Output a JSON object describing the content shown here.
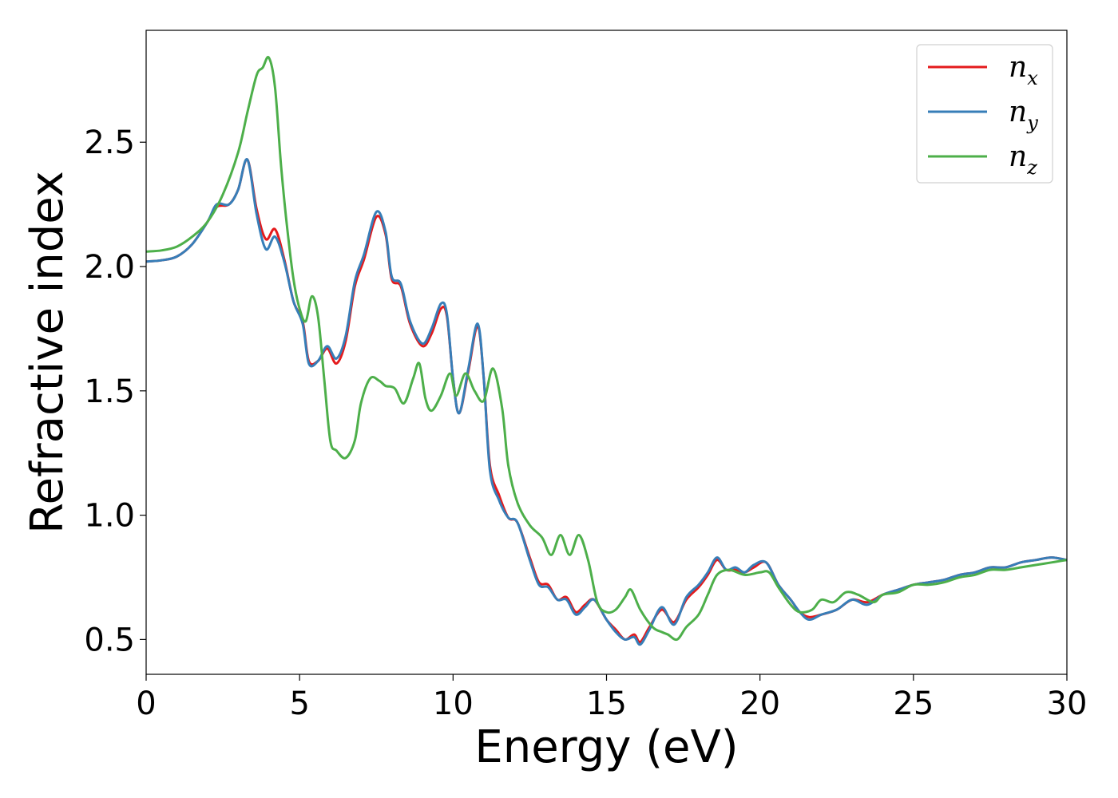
{
  "chart_data": {
    "type": "line",
    "xlabel": "Energy (eV)",
    "ylabel": "Refractive index",
    "xlim": [
      0,
      30
    ],
    "ylim": [
      0.36,
      2.95
    ],
    "x_ticks": [
      "0",
      "5",
      "10",
      "15",
      "20",
      "25",
      "30"
    ],
    "y_ticks": [
      "0.5",
      "1.0",
      "1.5",
      "2.0",
      "2.5"
    ],
    "grid": false,
    "legend_position": "top-right",
    "series": [
      {
        "name": "n_x",
        "legend_base": "n",
        "legend_sub": "x",
        "color": "#e41a1c",
        "points": [
          [
            0,
            2.02
          ],
          [
            0.5,
            2.025
          ],
          [
            1.0,
            2.04
          ],
          [
            1.5,
            2.09
          ],
          [
            2.0,
            2.18
          ],
          [
            2.3,
            2.24
          ],
          [
            2.7,
            2.25
          ],
          [
            3.0,
            2.31
          ],
          [
            3.3,
            2.43
          ],
          [
            3.6,
            2.23
          ],
          [
            3.9,
            2.11
          ],
          [
            4.2,
            2.15
          ],
          [
            4.5,
            2.03
          ],
          [
            4.8,
            1.86
          ],
          [
            5.1,
            1.78
          ],
          [
            5.3,
            1.62
          ],
          [
            5.6,
            1.62
          ],
          [
            5.9,
            1.67
          ],
          [
            6.2,
            1.61
          ],
          [
            6.5,
            1.7
          ],
          [
            6.8,
            1.92
          ],
          [
            7.1,
            2.03
          ],
          [
            7.5,
            2.2
          ],
          [
            7.8,
            2.13
          ],
          [
            8.0,
            1.95
          ],
          [
            8.3,
            1.92
          ],
          [
            8.6,
            1.77
          ],
          [
            9.0,
            1.68
          ],
          [
            9.3,
            1.73
          ],
          [
            9.6,
            1.83
          ],
          [
            9.8,
            1.8
          ],
          [
            10.0,
            1.55
          ],
          [
            10.2,
            1.41
          ],
          [
            10.5,
            1.58
          ],
          [
            10.8,
            1.76
          ],
          [
            11.0,
            1.55
          ],
          [
            11.2,
            1.2
          ],
          [
            11.5,
            1.08
          ],
          [
            11.8,
            0.99
          ],
          [
            12.1,
            0.97
          ],
          [
            12.5,
            0.83
          ],
          [
            12.8,
            0.73
          ],
          [
            13.1,
            0.72
          ],
          [
            13.4,
            0.66
          ],
          [
            13.7,
            0.67
          ],
          [
            14.0,
            0.61
          ],
          [
            14.3,
            0.64
          ],
          [
            14.6,
            0.66
          ],
          [
            15.0,
            0.58
          ],
          [
            15.3,
            0.54
          ],
          [
            15.6,
            0.5
          ],
          [
            15.9,
            0.52
          ],
          [
            16.1,
            0.49
          ],
          [
            16.4,
            0.55
          ],
          [
            16.8,
            0.62
          ],
          [
            17.2,
            0.57
          ],
          [
            17.6,
            0.66
          ],
          [
            18.0,
            0.71
          ],
          [
            18.3,
            0.76
          ],
          [
            18.6,
            0.82
          ],
          [
            18.9,
            0.78
          ],
          [
            19.2,
            0.78
          ],
          [
            19.5,
            0.77
          ],
          [
            19.8,
            0.79
          ],
          [
            20.2,
            0.81
          ],
          [
            20.6,
            0.72
          ],
          [
            21.0,
            0.66
          ],
          [
            21.3,
            0.61
          ],
          [
            21.6,
            0.59
          ],
          [
            22.0,
            0.6
          ],
          [
            22.5,
            0.62
          ],
          [
            23.0,
            0.66
          ],
          [
            23.5,
            0.65
          ],
          [
            24.0,
            0.68
          ],
          [
            24.5,
            0.7
          ],
          [
            25.0,
            0.72
          ],
          [
            25.5,
            0.73
          ],
          [
            26.0,
            0.74
          ],
          [
            26.5,
            0.76
          ],
          [
            27.0,
            0.77
          ],
          [
            27.5,
            0.79
          ],
          [
            28.0,
            0.79
          ],
          [
            28.5,
            0.81
          ],
          [
            29.0,
            0.82
          ],
          [
            29.5,
            0.83
          ],
          [
            30.0,
            0.82
          ]
        ]
      },
      {
        "name": "n_y",
        "legend_base": "n",
        "legend_sub": "y",
        "color": "#377eb8",
        "points": [
          [
            0,
            2.02
          ],
          [
            0.5,
            2.025
          ],
          [
            1.0,
            2.04
          ],
          [
            1.5,
            2.09
          ],
          [
            2.0,
            2.18
          ],
          [
            2.3,
            2.25
          ],
          [
            2.7,
            2.25
          ],
          [
            3.0,
            2.31
          ],
          [
            3.3,
            2.43
          ],
          [
            3.6,
            2.21
          ],
          [
            3.9,
            2.07
          ],
          [
            4.2,
            2.12
          ],
          [
            4.5,
            2.02
          ],
          [
            4.8,
            1.86
          ],
          [
            5.1,
            1.77
          ],
          [
            5.3,
            1.61
          ],
          [
            5.6,
            1.62
          ],
          [
            5.9,
            1.68
          ],
          [
            6.2,
            1.63
          ],
          [
            6.5,
            1.72
          ],
          [
            6.8,
            1.94
          ],
          [
            7.1,
            2.05
          ],
          [
            7.5,
            2.22
          ],
          [
            7.8,
            2.14
          ],
          [
            8.0,
            1.96
          ],
          [
            8.3,
            1.93
          ],
          [
            8.6,
            1.78
          ],
          [
            9.0,
            1.69
          ],
          [
            9.3,
            1.75
          ],
          [
            9.6,
            1.85
          ],
          [
            9.8,
            1.81
          ],
          [
            10.0,
            1.55
          ],
          [
            10.2,
            1.41
          ],
          [
            10.5,
            1.59
          ],
          [
            10.8,
            1.77
          ],
          [
            11.0,
            1.55
          ],
          [
            11.2,
            1.18
          ],
          [
            11.5,
            1.06
          ],
          [
            11.8,
            0.99
          ],
          [
            12.1,
            0.97
          ],
          [
            12.5,
            0.82
          ],
          [
            12.8,
            0.72
          ],
          [
            13.1,
            0.71
          ],
          [
            13.4,
            0.66
          ],
          [
            13.7,
            0.66
          ],
          [
            14.0,
            0.6
          ],
          [
            14.3,
            0.63
          ],
          [
            14.6,
            0.66
          ],
          [
            15.0,
            0.58
          ],
          [
            15.3,
            0.53
          ],
          [
            15.6,
            0.5
          ],
          [
            15.9,
            0.51
          ],
          [
            16.1,
            0.48
          ],
          [
            16.4,
            0.54
          ],
          [
            16.8,
            0.63
          ],
          [
            17.2,
            0.56
          ],
          [
            17.6,
            0.67
          ],
          [
            18.0,
            0.72
          ],
          [
            18.3,
            0.77
          ],
          [
            18.6,
            0.83
          ],
          [
            18.9,
            0.78
          ],
          [
            19.2,
            0.79
          ],
          [
            19.5,
            0.77
          ],
          [
            19.8,
            0.8
          ],
          [
            20.2,
            0.81
          ],
          [
            20.6,
            0.72
          ],
          [
            21.0,
            0.66
          ],
          [
            21.3,
            0.61
          ],
          [
            21.6,
            0.58
          ],
          [
            22.0,
            0.6
          ],
          [
            22.5,
            0.62
          ],
          [
            23.0,
            0.66
          ],
          [
            23.5,
            0.64
          ],
          [
            24.0,
            0.68
          ],
          [
            24.5,
            0.7
          ],
          [
            25.0,
            0.72
          ],
          [
            25.5,
            0.73
          ],
          [
            26.0,
            0.74
          ],
          [
            26.5,
            0.76
          ],
          [
            27.0,
            0.77
          ],
          [
            27.5,
            0.79
          ],
          [
            28.0,
            0.79
          ],
          [
            28.5,
            0.81
          ],
          [
            29.0,
            0.82
          ],
          [
            29.5,
            0.83
          ],
          [
            30.0,
            0.82
          ]
        ]
      },
      {
        "name": "n_z",
        "legend_base": "n",
        "legend_sub": "z",
        "color": "#4daf4a",
        "points": [
          [
            0,
            2.06
          ],
          [
            0.5,
            2.065
          ],
          [
            1.0,
            2.08
          ],
          [
            1.5,
            2.12
          ],
          [
            2.0,
            2.18
          ],
          [
            2.5,
            2.29
          ],
          [
            3.0,
            2.46
          ],
          [
            3.3,
            2.62
          ],
          [
            3.6,
            2.77
          ],
          [
            3.8,
            2.8
          ],
          [
            4.0,
            2.84
          ],
          [
            4.2,
            2.72
          ],
          [
            4.4,
            2.4
          ],
          [
            4.6,
            2.15
          ],
          [
            4.8,
            1.95
          ],
          [
            5.0,
            1.83
          ],
          [
            5.2,
            1.78
          ],
          [
            5.4,
            1.88
          ],
          [
            5.6,
            1.8
          ],
          [
            5.8,
            1.55
          ],
          [
            6.0,
            1.3
          ],
          [
            6.2,
            1.26
          ],
          [
            6.5,
            1.23
          ],
          [
            6.8,
            1.3
          ],
          [
            7.0,
            1.45
          ],
          [
            7.3,
            1.55
          ],
          [
            7.6,
            1.54
          ],
          [
            7.8,
            1.52
          ],
          [
            8.1,
            1.51
          ],
          [
            8.4,
            1.45
          ],
          [
            8.7,
            1.55
          ],
          [
            8.9,
            1.61
          ],
          [
            9.1,
            1.47
          ],
          [
            9.3,
            1.42
          ],
          [
            9.6,
            1.48
          ],
          [
            9.9,
            1.57
          ],
          [
            10.1,
            1.48
          ],
          [
            10.4,
            1.57
          ],
          [
            10.7,
            1.5
          ],
          [
            11.0,
            1.46
          ],
          [
            11.3,
            1.59
          ],
          [
            11.6,
            1.43
          ],
          [
            11.8,
            1.2
          ],
          [
            12.1,
            1.05
          ],
          [
            12.5,
            0.96
          ],
          [
            12.9,
            0.91
          ],
          [
            13.2,
            0.84
          ],
          [
            13.5,
            0.92
          ],
          [
            13.8,
            0.84
          ],
          [
            14.1,
            0.92
          ],
          [
            14.4,
            0.82
          ],
          [
            14.7,
            0.65
          ],
          [
            15.0,
            0.61
          ],
          [
            15.3,
            0.62
          ],
          [
            15.6,
            0.67
          ],
          [
            15.8,
            0.7
          ],
          [
            16.1,
            0.62
          ],
          [
            16.5,
            0.55
          ],
          [
            16.8,
            0.53
          ],
          [
            17.0,
            0.52
          ],
          [
            17.3,
            0.5
          ],
          [
            17.6,
            0.55
          ],
          [
            18.0,
            0.6
          ],
          [
            18.3,
            0.68
          ],
          [
            18.6,
            0.76
          ],
          [
            19.0,
            0.78
          ],
          [
            19.5,
            0.76
          ],
          [
            20.0,
            0.77
          ],
          [
            20.3,
            0.77
          ],
          [
            20.6,
            0.71
          ],
          [
            21.0,
            0.64
          ],
          [
            21.3,
            0.61
          ],
          [
            21.7,
            0.62
          ],
          [
            22.0,
            0.66
          ],
          [
            22.4,
            0.65
          ],
          [
            22.8,
            0.69
          ],
          [
            23.2,
            0.68
          ],
          [
            23.7,
            0.65
          ],
          [
            24.0,
            0.68
          ],
          [
            24.5,
            0.69
          ],
          [
            25.0,
            0.72
          ],
          [
            25.5,
            0.72
          ],
          [
            26.0,
            0.73
          ],
          [
            26.5,
            0.75
          ],
          [
            27.0,
            0.76
          ],
          [
            27.5,
            0.78
          ],
          [
            28.0,
            0.78
          ],
          [
            28.5,
            0.79
          ],
          [
            29.0,
            0.8
          ],
          [
            29.5,
            0.81
          ],
          [
            30.0,
            0.82
          ]
        ]
      }
    ]
  }
}
